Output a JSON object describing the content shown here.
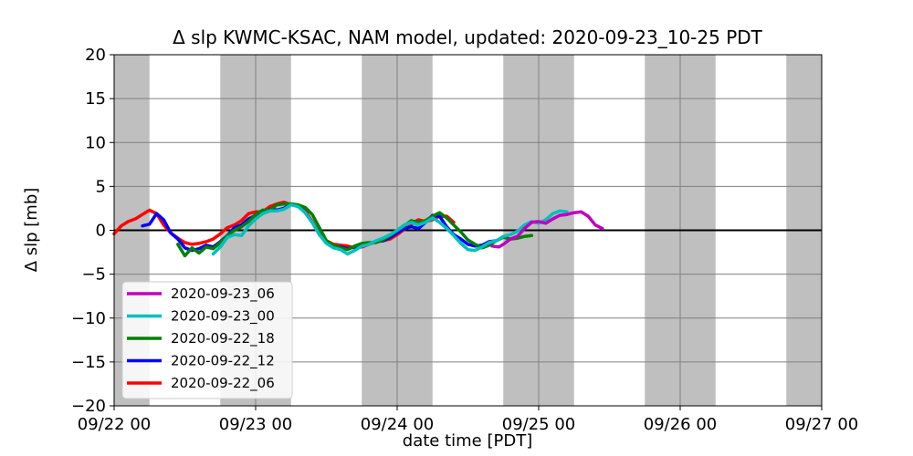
{
  "chart_data": {
    "type": "line",
    "title": "Δ slp KWMC-KSAC, NAM model, updated: 2020-09-23_10-25 PDT",
    "xlabel": "date time [PDT]",
    "ylabel": "Δ slp [mb]",
    "xlim_days": [
      0,
      5
    ],
    "ylim": [
      -20,
      20
    ],
    "x_ticks": [
      {
        "day": 0,
        "label": "09/22 00"
      },
      {
        "day": 1,
        "label": "09/23 00"
      },
      {
        "day": 2,
        "label": "09/24 00"
      },
      {
        "day": 3,
        "label": "09/25 00"
      },
      {
        "day": 4,
        "label": "09/26 00"
      },
      {
        "day": 5,
        "label": "09/27 00"
      }
    ],
    "y_ticks": [
      20,
      15,
      10,
      5,
      0,
      -5,
      -10,
      -15,
      -20
    ],
    "night_shading_days": [
      [
        0,
        0.25
      ],
      [
        0.75,
        1.25
      ],
      [
        1.75,
        2.25
      ],
      [
        2.75,
        3.25
      ],
      [
        3.75,
        4.25
      ],
      [
        4.75,
        5
      ]
    ],
    "grid": true,
    "zero_line": true,
    "legend_position": "lower-left",
    "series": [
      {
        "name": "2020-09-23_06",
        "color": "#bf00bf",
        "x": [
          2.67,
          2.72,
          2.75,
          2.8,
          2.85,
          2.9,
          2.95,
          3.0,
          3.05,
          3.1,
          3.15,
          3.2,
          3.25,
          3.3,
          3.35,
          3.4,
          3.45
        ],
        "y": [
          -1.8,
          -1.9,
          -1.6,
          -1.0,
          -0.7,
          0.2,
          0.9,
          1.0,
          0.8,
          1.3,
          1.7,
          1.8,
          2.0,
          2.1,
          1.6,
          0.6,
          0.2
        ]
      },
      {
        "name": "2020-09-23_00",
        "color": "#00bfbf",
        "x": [
          0.7,
          0.75,
          0.8,
          0.85,
          0.9,
          0.95,
          1.0,
          1.05,
          1.1,
          1.15,
          1.2,
          1.25,
          1.3,
          1.35,
          1.4,
          1.45,
          1.5,
          1.55,
          1.6,
          1.65,
          1.7,
          1.75,
          1.8,
          1.85,
          1.9,
          1.95,
          2.0,
          2.05,
          2.1,
          2.15,
          2.2,
          2.25,
          2.3,
          2.35,
          2.4,
          2.45,
          2.5,
          2.55,
          2.6,
          2.65,
          2.7,
          2.75,
          2.8,
          2.85,
          2.9,
          2.95,
          3.0,
          3.05,
          3.1,
          3.15,
          3.2
        ],
        "y": [
          -2.7,
          -1.9,
          -0.8,
          -0.5,
          -0.6,
          0.5,
          1.3,
          1.9,
          2.2,
          2.2,
          2.4,
          2.9,
          2.7,
          2.0,
          0.9,
          -0.5,
          -1.5,
          -2.0,
          -2.2,
          -2.7,
          -2.3,
          -1.8,
          -1.6,
          -1.2,
          -0.9,
          -0.5,
          0.0,
          0.6,
          0.9,
          0.6,
          0.9,
          1.4,
          0.9,
          0.2,
          -0.6,
          -1.5,
          -2.2,
          -2.3,
          -1.9,
          -1.4,
          -1.2,
          -0.7,
          -0.5,
          -0.1,
          0.6,
          1.0,
          0.8,
          1.2,
          1.9,
          2.2,
          2.1
        ]
      },
      {
        "name": "2020-09-22_18",
        "color": "#008000",
        "x": [
          0.45,
          0.5,
          0.55,
          0.6,
          0.65,
          0.7,
          0.75,
          0.8,
          0.85,
          0.9,
          0.95,
          1.0,
          1.05,
          1.1,
          1.15,
          1.2,
          1.25,
          1.3,
          1.35,
          1.4,
          1.45,
          1.5,
          1.55,
          1.6,
          1.65,
          1.7,
          1.75,
          1.8,
          1.85,
          1.9,
          1.95,
          2.0,
          2.05,
          2.1,
          2.15,
          2.2,
          2.25,
          2.3,
          2.35,
          2.4,
          2.45,
          2.5,
          2.55,
          2.6,
          2.65,
          2.7,
          2.75,
          2.8,
          2.85,
          2.9,
          2.95
        ],
        "y": [
          -1.6,
          -2.9,
          -2.0,
          -2.6,
          -1.9,
          -2.1,
          -1.4,
          -0.6,
          0.0,
          0.4,
          1.0,
          1.8,
          2.3,
          2.3,
          2.9,
          3.0,
          3.0,
          2.9,
          2.6,
          1.8,
          0.3,
          -1.2,
          -1.7,
          -2.0,
          -2.2,
          -1.8,
          -1.5,
          -1.4,
          -1.4,
          -1.1,
          -0.6,
          0.0,
          0.5,
          1.1,
          0.9,
          1.1,
          1.6,
          2.0,
          1.4,
          0.6,
          -0.2,
          -1.1,
          -1.6,
          -2.0,
          -1.7,
          -1.2,
          -0.8,
          -1.0,
          -0.9,
          -0.7,
          -0.6
        ]
      },
      {
        "name": "2020-09-22_12",
        "color": "#0000ff",
        "x": [
          0.2,
          0.25,
          0.3,
          0.35,
          0.4,
          0.45,
          0.5,
          0.55,
          0.6,
          0.65,
          0.7,
          0.75,
          0.8,
          0.85,
          0.9,
          0.95,
          1.0,
          1.05,
          1.1,
          1.15,
          1.2,
          1.25,
          1.3,
          1.35,
          1.4,
          1.45,
          1.5,
          1.55,
          1.6,
          1.65,
          1.7,
          1.75,
          1.8,
          1.85,
          1.9,
          1.95,
          2.0,
          2.05,
          2.1,
          2.15,
          2.2,
          2.25,
          2.3,
          2.35,
          2.4,
          2.45,
          2.5,
          2.55,
          2.6,
          2.65,
          2.7
        ],
        "y": [
          0.5,
          0.7,
          1.9,
          1.2,
          -0.3,
          -1.0,
          -2.0,
          -2.3,
          -2.1,
          -1.7,
          -1.9,
          -1.3,
          -0.6,
          0.3,
          0.6,
          1.3,
          1.7,
          2.0,
          2.4,
          2.3,
          2.5,
          3.0,
          2.8,
          2.0,
          0.9,
          -0.5,
          -1.4,
          -1.9,
          -1.9,
          -2.1,
          -1.9,
          -1.6,
          -1.5,
          -1.3,
          -1.2,
          -0.8,
          -0.3,
          0.2,
          0.4,
          0.2,
          0.9,
          1.7,
          1.6,
          0.4,
          -0.5,
          -1.0,
          -1.6,
          -1.8,
          -1.7,
          -1.3,
          -1.2
        ]
      },
      {
        "name": "2020-09-22_06",
        "color": "#ff0000",
        "x": [
          0.0,
          0.05,
          0.1,
          0.15,
          0.2,
          0.25,
          0.3,
          0.35,
          0.4,
          0.45,
          0.5,
          0.55,
          0.6,
          0.65,
          0.7,
          0.75,
          0.8,
          0.85,
          0.9,
          0.95,
          1.0,
          1.05,
          1.1,
          1.15,
          1.2,
          1.25,
          1.3,
          1.35,
          1.4,
          1.45,
          1.5,
          1.55,
          1.6,
          1.65,
          1.7,
          1.75,
          1.8,
          1.85,
          1.9,
          1.95,
          2.0,
          2.05,
          2.1,
          2.15,
          2.2,
          2.25,
          2.3,
          2.35,
          2.4
        ],
        "y": [
          -0.4,
          0.5,
          1.0,
          1.3,
          1.8,
          2.3,
          1.9,
          0.6,
          -0.3,
          -0.9,
          -1.4,
          -1.6,
          -1.5,
          -1.3,
          -1.0,
          -0.4,
          0.3,
          0.6,
          1.1,
          1.9,
          2.1,
          2.1,
          2.7,
          3.0,
          3.2,
          2.9,
          2.8,
          2.2,
          1.0,
          -0.4,
          -1.2,
          -1.6,
          -1.7,
          -1.8,
          -2.0,
          -1.9,
          -1.6,
          -1.3,
          -1.2,
          -1.0,
          -0.5,
          0.1,
          0.7,
          1.2,
          1.0,
          1.2,
          1.6,
          1.6,
          0.9
        ]
      }
    ]
  }
}
